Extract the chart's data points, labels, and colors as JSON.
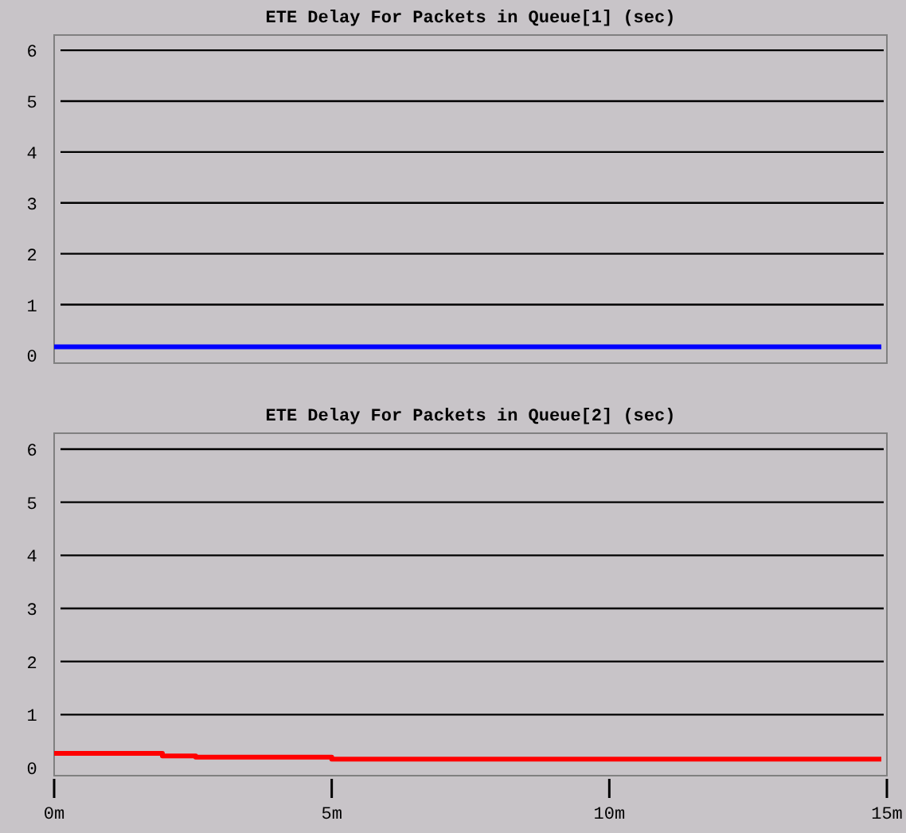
{
  "chart_data": [
    {
      "type": "step",
      "title": "ETE Delay For Packets in Queue[1] (sec)",
      "x": [
        0,
        14.9
      ],
      "xlim": [
        0,
        15
      ],
      "ylim": [
        -0.15,
        6.3
      ],
      "yticks": [
        0,
        1,
        2,
        3,
        4,
        5,
        6
      ],
      "grid": "y",
      "tick_labels": "y",
      "series": [
        {
          "color": "#0000ff",
          "values": [
            0.17,
            0.17
          ]
        }
      ]
    },
    {
      "type": "step",
      "title": "ETE Delay For Packets in Queue[2] (sec)",
      "x": [
        0,
        1.95,
        2.55,
        5,
        14.9
      ],
      "xlim": [
        0,
        15
      ],
      "ylim": [
        -0.15,
        6.3
      ],
      "yticks": [
        0,
        1,
        2,
        3,
        4,
        5,
        6
      ],
      "xticks": [
        {
          "value": 0,
          "label": "0m"
        },
        {
          "value": 5,
          "label": "5m"
        },
        {
          "value": 10,
          "label": "10m"
        },
        {
          "value": 15,
          "label": "15m"
        }
      ],
      "grid": "y",
      "series": [
        {
          "color": "#ff0000",
          "values": [
            0.27,
            0.22,
            0.2,
            0.16,
            0.16
          ]
        }
      ]
    }
  ]
}
